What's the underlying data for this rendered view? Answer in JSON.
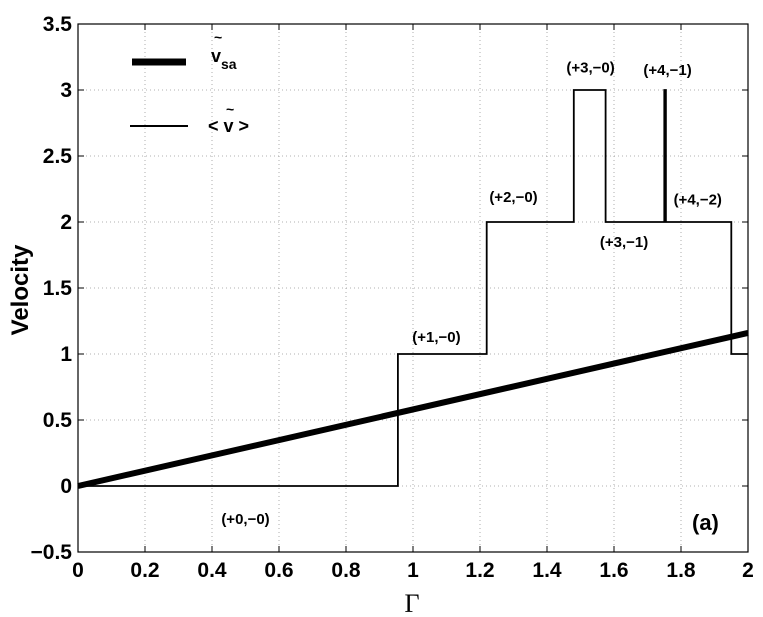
{
  "chart_data": {
    "type": "line",
    "xlabel": "Γ",
    "ylabel": "Velocity",
    "xlim": [
      0,
      2
    ],
    "ylim": [
      -0.5,
      3.5
    ],
    "xticks": [
      0,
      0.2,
      0.4,
      0.6,
      0.8,
      1,
      1.2,
      1.4,
      1.6,
      1.8,
      2
    ],
    "xtick_labels": [
      "0",
      "0.2",
      "0.4",
      "0.6",
      "0.8",
      "1",
      "1.2",
      "1.4",
      "1.6",
      "1.8",
      "2"
    ],
    "yticks": [
      -0.5,
      0,
      0.5,
      1,
      1.5,
      2,
      2.5,
      3,
      3.5
    ],
    "ytick_labels": [
      "−0.5",
      "0",
      "0.5",
      "1",
      "1.5",
      "2",
      "2.5",
      "3",
      "3.5"
    ],
    "grid": true,
    "legend_position": "top-left",
    "panel_label": "(a)",
    "series": [
      {
        "legend_main": "v",
        "legend_sub": "sa",
        "legend_accent": "~",
        "style": "thick",
        "color": "#000000",
        "x": [
          0,
          2
        ],
        "y": [
          0,
          1.16
        ]
      },
      {
        "legend_text": "< v >",
        "legend_accent": "~",
        "style": "thin",
        "color": "#000000",
        "x": [
          0,
          0.955,
          0.955,
          1.22,
          1.22,
          1.48,
          1.48,
          1.575,
          1.575,
          1.75,
          1.75,
          1.755,
          1.755,
          1.95,
          1.95,
          2.0
        ],
        "y": [
          0,
          0,
          1,
          1,
          2,
          2,
          3,
          3,
          2,
          2,
          3,
          3,
          2,
          2,
          1,
          1
        ]
      }
    ],
    "annotations": [
      {
        "text": "(+0,−0)",
        "x": 0.5,
        "y": -0.25
      },
      {
        "text": "(+1,−0)",
        "x": 1.07,
        "y": 1.13
      },
      {
        "text": "(+2,−0)",
        "x": 1.3,
        "y": 2.19
      },
      {
        "text": "(+3,−0)",
        "x": 1.53,
        "y": 3.17
      },
      {
        "text": "(+3,−1)",
        "x": 1.63,
        "y": 1.85
      },
      {
        "text": "(+4,−1)",
        "x": 1.76,
        "y": 3.15
      },
      {
        "text": "(+4,−2)",
        "x": 1.85,
        "y": 2.17
      }
    ]
  }
}
